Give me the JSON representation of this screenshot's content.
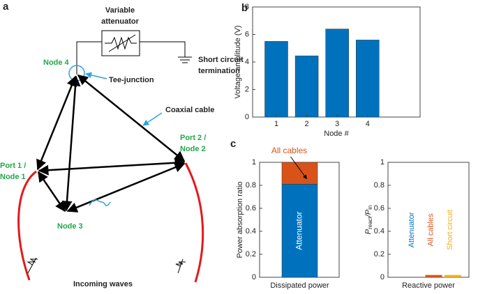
{
  "diagram": {
    "panel": "a",
    "attenuator": [
      "Variable",
      "attenuator"
    ],
    "termination": [
      "Short circuit",
      "termination"
    ],
    "node4": "Node 4",
    "tee": "Tee-junction",
    "cable": "Coaxial cable",
    "node2": [
      "Port 2 /",
      "Node 2"
    ],
    "node1": [
      "Port 1 /",
      "Node 1"
    ],
    "node3": "Node 3",
    "waves": "Incoming waves"
  },
  "chart_data": [
    {
      "type": "bar",
      "panel": "b",
      "categories": [
        "1",
        "2",
        "3",
        "4"
      ],
      "values": [
        5.5,
        4.45,
        6.4,
        5.6
      ],
      "color": "#0072bd",
      "ylim": [
        0,
        8
      ],
      "yticks": [
        0,
        2,
        4,
        6,
        8
      ],
      "ylabel": "Voltage amplitude (V)",
      "xlabel": "Node #"
    },
    {
      "type": "stacked-bar",
      "panel": "c",
      "categories": [
        "Dissipated power"
      ],
      "series": [
        {
          "name": "Attenuator",
          "color": "#0072bd",
          "values": [
            0.81
          ]
        },
        {
          "name": "All cables",
          "color": "#d95319",
          "values": [
            0.19
          ]
        }
      ],
      "ylim": [
        0,
        1
      ],
      "yticks": [
        0,
        0.2,
        0.4,
        0.6,
        0.8,
        1
      ],
      "ylabel": "Power absorption ratio"
    },
    {
      "type": "bar",
      "categories": [
        "Attenuator",
        "All cables",
        "Short circuit"
      ],
      "values": [
        0,
        0.02,
        0.02
      ],
      "colors": [
        "#0072bd",
        "#d95319",
        "#edb120"
      ],
      "ylim": [
        0,
        1
      ],
      "yticks": [
        0,
        0.2,
        0.4,
        0.6,
        0.8,
        1
      ],
      "ylabel": [
        {
          "text": "P"
        },
        {
          "text": "react",
          "sub": true
        },
        {
          "text": "/P"
        },
        {
          "text": "in",
          "sub": true
        }
      ],
      "xlabel": "Reactive power"
    }
  ]
}
